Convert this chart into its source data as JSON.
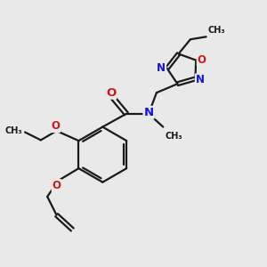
{
  "bg_color": "#e9e9e9",
  "bond_color": "#1a1a1a",
  "N_color": "#1414e0",
  "O_color": "#cc1a1a",
  "bond_width": 1.6,
  "fig_size": [
    3.0,
    3.0
  ],
  "dpi": 100,
  "xlim": [
    0,
    10
  ],
  "ylim": [
    0,
    10
  ]
}
